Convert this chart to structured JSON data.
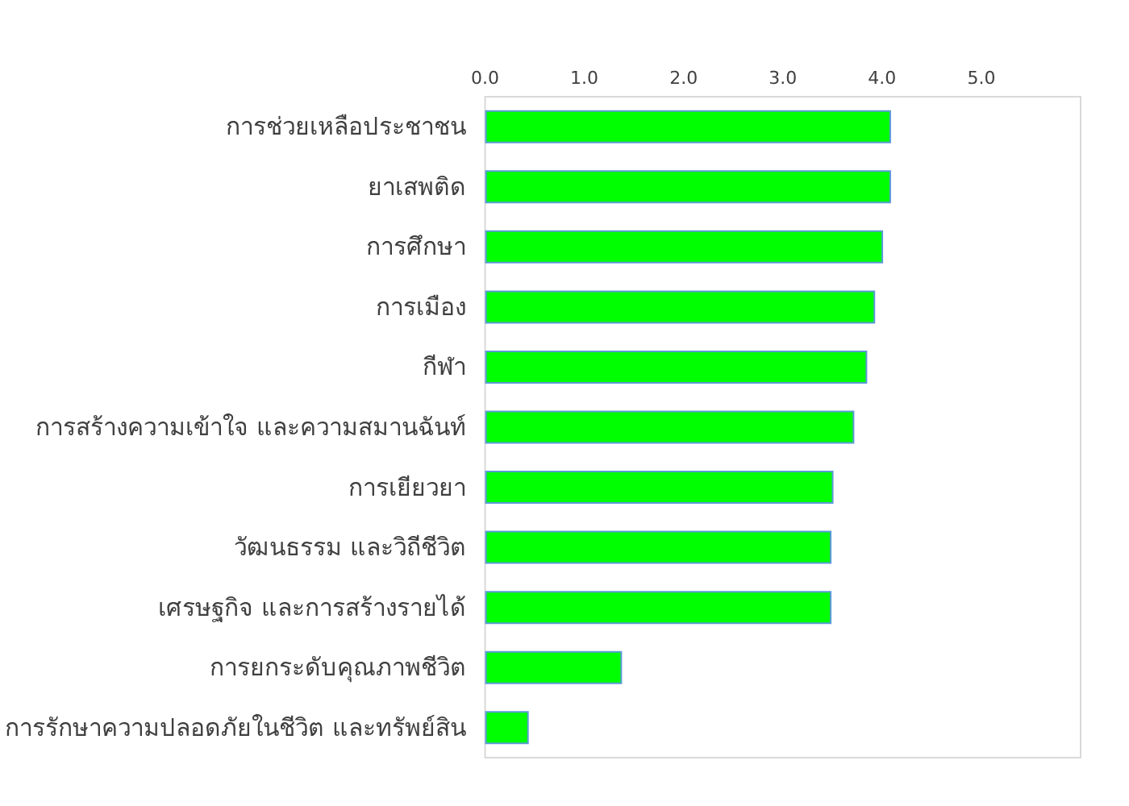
{
  "chart_data": {
    "type": "bar",
    "orientation": "horizontal",
    "categories": [
      "การช่วยเหลือประชาชน",
      "ยาเสพติด",
      "การศึกษา",
      "การเมือง",
      "กีฬา",
      "การสร้างความเข้าใจ และความสมานฉันท์",
      "การเยียวยา",
      "วัฒนธรรม และวิถีชีวิต",
      "เศรษฐกิจ และการสร้างรายได้",
      "การยกระดับคุณภาพชีวิต",
      "การรักษาความปลอดภัยในชีวิต และทรัพย์สิน"
    ],
    "values": [
      4.09,
      4.09,
      4.01,
      3.93,
      3.85,
      3.72,
      3.51,
      3.49,
      3.49,
      1.38,
      0.44
    ],
    "color": "#00ff00",
    "xlim": [
      0,
      6
    ],
    "xticks": [
      {
        "value": 0,
        "label": "0.0"
      },
      {
        "value": 1,
        "label": "1.0"
      },
      {
        "value": 2,
        "label": "2.0"
      },
      {
        "value": 3,
        "label": "3.0"
      },
      {
        "value": 4,
        "label": "4.0"
      },
      {
        "value": 5,
        "label": "5.0"
      }
    ]
  }
}
